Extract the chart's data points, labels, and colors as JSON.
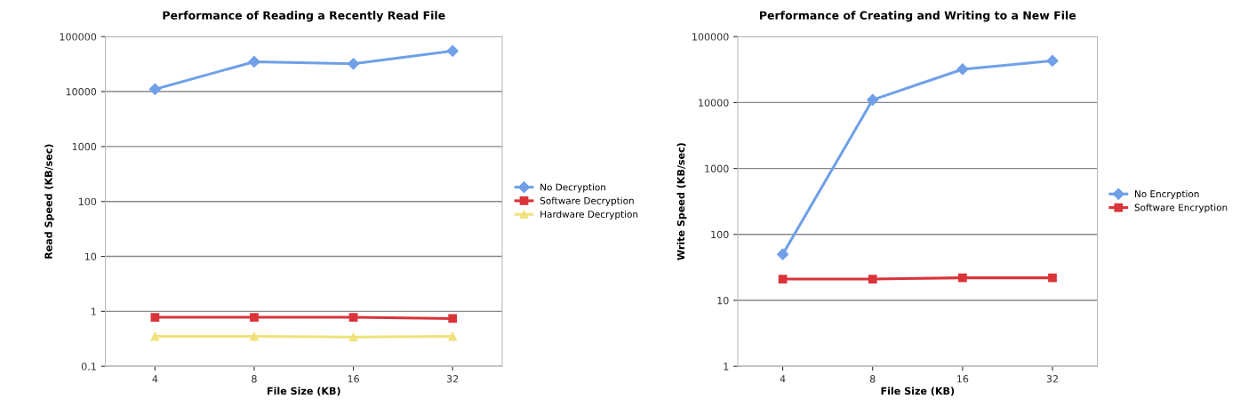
{
  "chart_data": [
    {
      "type": "line",
      "title": "Performance of Reading a Recently Read File",
      "xlabel": "File Size (KB)",
      "ylabel": "Read Speed (KB/sec)",
      "log": "y",
      "grid": "y",
      "legend": "right",
      "categories": [
        "4",
        "8",
        "16",
        "32"
      ],
      "ylim": [
        0.1,
        100000
      ],
      "yticks": [
        0.1,
        1,
        10,
        100,
        1000,
        10000,
        100000
      ],
      "series": [
        {
          "name": "No Decryption",
          "color": "#6fa0e8",
          "marker": "diamond",
          "values": [
            11000,
            35000,
            32000,
            55000
          ]
        },
        {
          "name": "Software Decryption",
          "color": "#d9343a",
          "marker": "square",
          "values": [
            0.78,
            0.78,
            0.78,
            0.74
          ]
        },
        {
          "name": "Hardware Decryption",
          "color": "#f0e27a",
          "marker": "triangle",
          "values": [
            0.35,
            0.35,
            0.34,
            0.35
          ]
        }
      ]
    },
    {
      "type": "line",
      "title": "Performance of Creating and Writing to a New File",
      "xlabel": "File Size (KB)",
      "ylabel": "Write Speed (KB/sec)",
      "log": "y",
      "grid": "y",
      "legend": "right",
      "categories": [
        "4",
        "8",
        "16",
        "32"
      ],
      "ylim": [
        1,
        100000
      ],
      "yticks": [
        1,
        10,
        100,
        1000,
        10000,
        100000
      ],
      "series": [
        {
          "name": "No Encryption",
          "color": "#6fa0e8",
          "marker": "diamond",
          "values": [
            50,
            11000,
            32000,
            43000
          ]
        },
        {
          "name": "Software Encryption",
          "color": "#d9343a",
          "marker": "square",
          "values": [
            21,
            21,
            22,
            22
          ]
        }
      ]
    }
  ]
}
